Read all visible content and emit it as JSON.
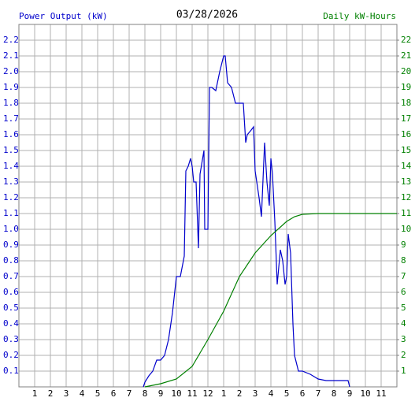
{
  "chart_data": {
    "type": "line",
    "title": "03/28/2026",
    "ylabel": "Power Output (kW)",
    "y2label": "Daily kW-Hours",
    "xlim": [
      0,
      24
    ],
    "xticks": [
      {
        "value": 1,
        "label": "1"
      },
      {
        "value": 2,
        "label": "2"
      },
      {
        "value": 3,
        "label": "3"
      },
      {
        "value": 4,
        "label": "4"
      },
      {
        "value": 5,
        "label": "5"
      },
      {
        "value": 6,
        "label": "6"
      },
      {
        "value": 7,
        "label": "7"
      },
      {
        "value": 8,
        "label": "8"
      },
      {
        "value": 9,
        "label": "9"
      },
      {
        "value": 10,
        "label": "10"
      },
      {
        "value": 11,
        "label": "11"
      },
      {
        "value": 12,
        "label": "12"
      },
      {
        "value": 13,
        "label": "1"
      },
      {
        "value": 14,
        "label": "2"
      },
      {
        "value": 15,
        "label": "3"
      },
      {
        "value": 16,
        "label": "4"
      },
      {
        "value": 17,
        "label": "5"
      },
      {
        "value": 18,
        "label": "6"
      },
      {
        "value": 19,
        "label": "7"
      },
      {
        "value": 20,
        "label": "8"
      },
      {
        "value": 21,
        "label": "9"
      },
      {
        "value": 22,
        "label": "10"
      },
      {
        "value": 23,
        "label": "11"
      }
    ],
    "ylim": [
      0,
      2.3
    ],
    "yticks": [
      0.1,
      0.2,
      0.3,
      0.4,
      0.5,
      0.6,
      0.7,
      0.8,
      0.9,
      {
        "value": 1,
        "label": "1.0"
      },
      1.1,
      1.2,
      1.3,
      1.4,
      1.5,
      1.6,
      1.7,
      1.8,
      1.9,
      {
        "value": 2,
        "label": "2.0"
      },
      2.1,
      2.2
    ],
    "y2lim": [
      0,
      23
    ],
    "y2ticks": [
      1,
      2,
      3,
      4,
      5,
      6,
      7,
      8,
      9,
      10,
      11,
      12,
      13,
      14,
      15,
      16,
      17,
      18,
      19,
      20,
      21,
      22
    ],
    "grid": true,
    "series": [
      {
        "name": "Power Output (kW)",
        "color": "#0000cc",
        "x": [
          7.9,
          8.0,
          8.25,
          8.5,
          8.75,
          9.0,
          9.25,
          9.5,
          9.75,
          10.0,
          10.25,
          10.5,
          10.6,
          10.75,
          10.9,
          11.0,
          11.1,
          11.25,
          11.4,
          11.5,
          11.75,
          11.8,
          12.0,
          12.1,
          12.25,
          12.5,
          12.75,
          13.0,
          13.1,
          13.25,
          13.5,
          13.75,
          14.0,
          14.25,
          14.4,
          14.5,
          14.75,
          14.9,
          15.0,
          15.25,
          15.4,
          15.6,
          15.75,
          15.9,
          16.0,
          16.1,
          16.25,
          16.4,
          16.6,
          16.75,
          16.9,
          17.0,
          17.1,
          17.25,
          17.4,
          17.5,
          17.75,
          18.0,
          18.5,
          19.0,
          19.5,
          20.0,
          20.9,
          21.0
        ],
        "values": [
          0,
          0.03,
          0.07,
          0.1,
          0.17,
          0.17,
          0.2,
          0.3,
          0.47,
          0.7,
          0.7,
          0.83,
          1.37,
          1.4,
          1.45,
          1.4,
          1.3,
          1.3,
          0.88,
          1.35,
          1.5,
          1.0,
          1.0,
          1.9,
          1.9,
          1.88,
          2.0,
          2.1,
          2.1,
          1.93,
          1.9,
          1.8,
          1.8,
          1.8,
          1.55,
          1.6,
          1.63,
          1.65,
          1.37,
          1.2,
          1.08,
          1.55,
          1.3,
          1.15,
          1.45,
          1.35,
          1.05,
          0.65,
          0.87,
          0.8,
          0.65,
          0.7,
          0.97,
          0.85,
          0.4,
          0.2,
          0.1,
          0.1,
          0.08,
          0.05,
          0.04,
          0.04,
          0.04,
          0
        ]
      },
      {
        "name": "Daily kW-Hours",
        "color": "#008000",
        "axis": "y2",
        "x": [
          8,
          9,
          10,
          11,
          12,
          13,
          14,
          15,
          16,
          17,
          17.5,
          18,
          19,
          24
        ],
        "values": [
          0,
          0.2,
          0.5,
          1.3,
          3.0,
          4.8,
          7.0,
          8.5,
          9.6,
          10.5,
          10.8,
          10.95,
          11.0,
          11.0
        ]
      }
    ]
  }
}
